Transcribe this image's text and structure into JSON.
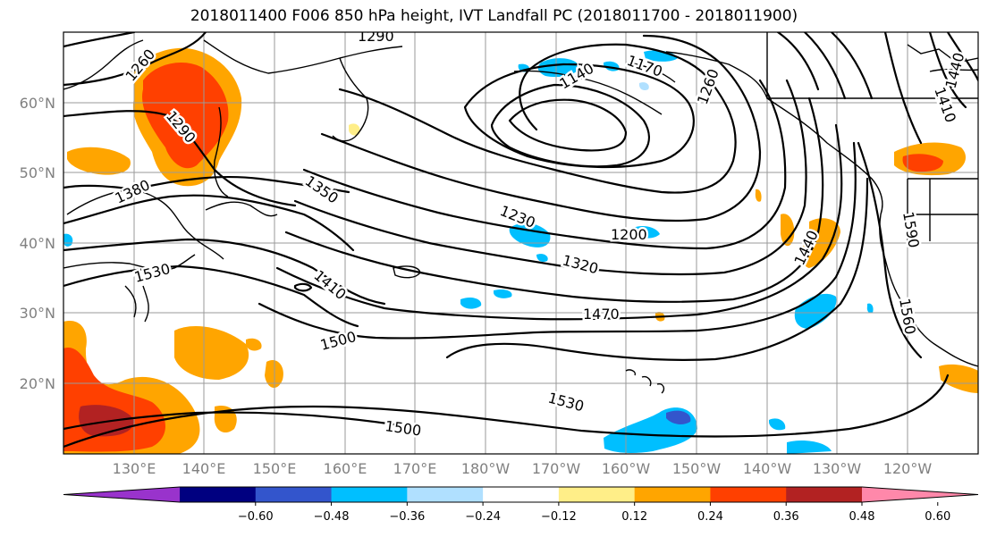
{
  "title": "2018011400 F006 850 hPa height, IVT Landfall PC (2018011700 - 2018011900)",
  "latitude_labels": [
    "60°N",
    "50°N",
    "40°N",
    "30°N",
    "20°N"
  ],
  "longitude_labels": [
    "130°E",
    "140°E",
    "150°E",
    "160°E",
    "170°E",
    "180°W",
    "170°W",
    "160°W",
    "150°W",
    "140°W",
    "130°W",
    "120°W"
  ],
  "contour_labels": [
    "1260",
    "1290",
    "1380",
    "1350",
    "1290",
    "1140",
    "1170",
    "1260",
    "1230",
    "1200",
    "1320",
    "1410",
    "1530",
    "1470",
    "1500",
    "1440",
    "1590",
    "1560",
    "1530",
    "1500",
    "1440",
    "1410"
  ],
  "colorbar": {
    "colors": [
      "#9933cc",
      "#000080",
      "#3355cc",
      "#00bfff",
      "#b0e0ff",
      "#ffffff",
      "#ffee88",
      "#ffa500",
      "#ff4000",
      "#b22222",
      "#ff88aa"
    ],
    "ticks": [
      "−0.60",
      "−0.48",
      "−0.36",
      "−0.24",
      "−0.12",
      "0.12",
      "0.24",
      "0.36",
      "0.48",
      "0.60"
    ]
  }
}
